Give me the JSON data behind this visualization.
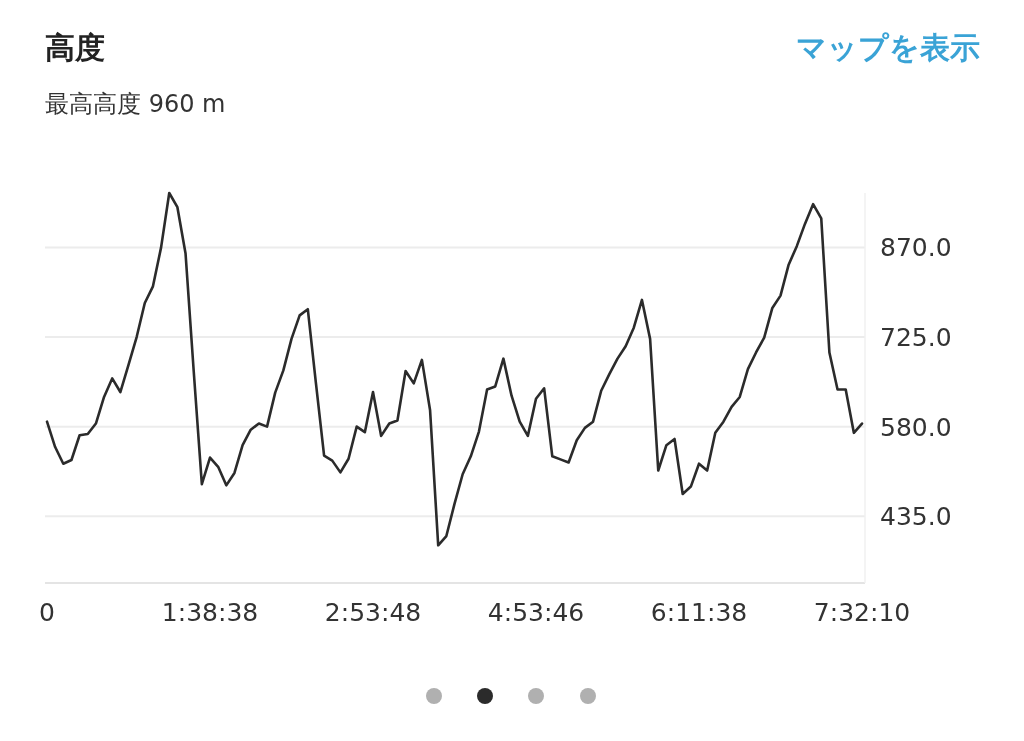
{
  "chart_data": {
    "type": "line",
    "title": "高度",
    "subtitle": "最高高度 960 m",
    "annotations": [
      "マップを表示"
    ],
    "categories": [
      "0",
      null,
      null,
      null,
      null,
      null,
      null,
      null,
      null,
      null,
      null,
      null,
      null,
      null,
      null,
      null,
      null,
      null,
      null,
      null,
      "1:38:38",
      null,
      null,
      null,
      null,
      null,
      null,
      null,
      null,
      null,
      null,
      null,
      null,
      null,
      null,
      null,
      null,
      null,
      null,
      null,
      "2:53:48",
      null,
      null,
      null,
      null,
      null,
      null,
      null,
      null,
      null,
      null,
      null,
      null,
      null,
      null,
      null,
      null,
      null,
      null,
      null,
      "4:53:46",
      null,
      null,
      null,
      null,
      null,
      null,
      null,
      null,
      null,
      null,
      null,
      null,
      null,
      null,
      null,
      null,
      null,
      null,
      null,
      "6:11:38",
      null,
      null,
      null,
      null,
      null,
      null,
      null,
      null,
      null,
      null,
      null,
      null,
      null,
      null,
      null,
      null,
      null,
      null,
      null,
      "7:32:10"
    ],
    "series": [
      {
        "color": "#2b2b2b",
        "values": [
          588,
          547,
          520,
          526,
          566,
          568,
          585,
          628,
          658,
          636,
          680,
          725,
          780,
          807,
          870,
          958,
          935,
          860,
          670,
          487,
          530,
          515,
          485,
          505,
          550,
          575,
          585,
          580,
          635,
          671,
          722,
          760,
          770,
          650,
          533,
          525,
          506,
          528,
          580,
          571,
          636,
          565,
          585,
          590,
          670,
          650,
          688,
          607,
          388,
          403,
          455,
          503,
          532,
          572,
          640,
          645,
          690,
          630,
          588,
          565,
          625,
          642,
          532,
          527,
          522,
          558,
          578,
          588,
          638,
          665,
          690,
          710,
          740,
          785,
          722,
          509,
          550,
          560,
          471,
          483,
          520,
          509,
          570,
          588,
          612,
          628,
          673,
          700,
          724,
          772,
          792,
          842,
          872,
          908,
          940,
          917,
          700,
          640,
          640,
          570,
          585
        ]
      }
    ],
    "ylim": [
      327,
      958
    ],
    "yticks": [
      {
        "value": 435,
        "label": "435.0"
      },
      {
        "value": 580,
        "label": "580.0"
      },
      {
        "value": 725,
        "label": "725.0"
      },
      {
        "value": 870,
        "label": "870.0"
      }
    ],
    "grid": "y"
  }
}
